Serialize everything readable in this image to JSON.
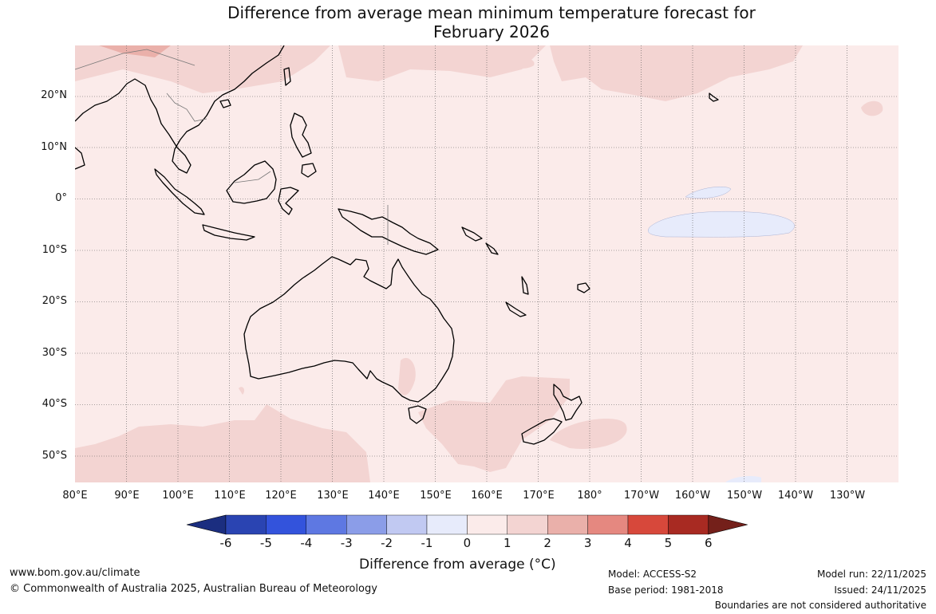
{
  "title_line1": "Difference from average mean minimum temperature forecast for",
  "title_line2": "February 2026",
  "lat_labels": [
    "20°N",
    "10°N",
    "0°",
    "10°S",
    "20°S",
    "30°S",
    "40°S",
    "50°S"
  ],
  "lon_labels": [
    "80°E",
    "90°E",
    "100°E",
    "110°E",
    "120°E",
    "130°E",
    "140°E",
    "150°E",
    "160°E",
    "170°E",
    "180°",
    "170°W",
    "160°W",
    "150°W",
    "140°W",
    "130°W"
  ],
  "colorbar": {
    "ticks": [
      "-6",
      "-5",
      "-4",
      "-3",
      "-2",
      "-1",
      "0",
      "1",
      "2",
      "3",
      "4",
      "5",
      "6"
    ],
    "colors": [
      "#1b2e80",
      "#2a44b2",
      "#3353dc",
      "#5e78e2",
      "#8b9de8",
      "#c1c9f2",
      "#e7ebfb",
      "#fbebea",
      "#f3d4d2",
      "#eab0aa",
      "#e58880",
      "#d7483b",
      "#a82a22",
      "#74201a"
    ],
    "label": "Difference from average (°C)"
  },
  "footer": {
    "website": "www.bom.gov.au/climate",
    "copyright": "© Commonwealth of Australia 2025, Australian Bureau of Meteorology",
    "model": "Model: ACCESS-S2",
    "base_period": "Base period: 1981-2018",
    "model_run": "Model run: 22/11/2025",
    "issued": "Issued: 24/11/2025",
    "disclaimer": "Boundaries are not considered authoritative"
  }
}
